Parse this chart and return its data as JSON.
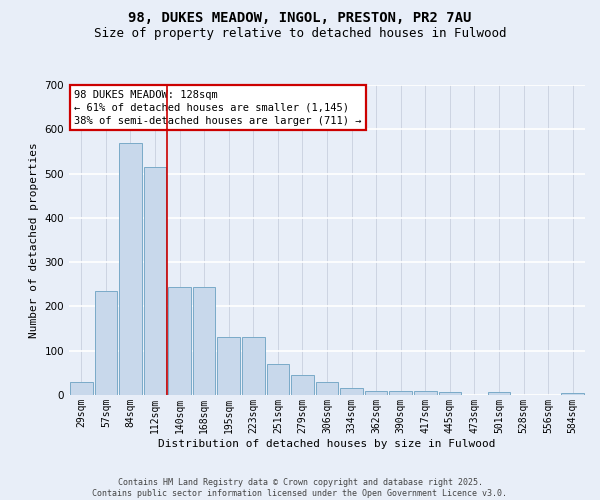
{
  "title1": "98, DUKES MEADOW, INGOL, PRESTON, PR2 7AU",
  "title2": "Size of property relative to detached houses in Fulwood",
  "xlabel": "Distribution of detached houses by size in Fulwood",
  "ylabel": "Number of detached properties",
  "categories": [
    "29sqm",
    "57sqm",
    "84sqm",
    "112sqm",
    "140sqm",
    "168sqm",
    "195sqm",
    "223sqm",
    "251sqm",
    "279sqm",
    "306sqm",
    "334sqm",
    "362sqm",
    "390sqm",
    "417sqm",
    "445sqm",
    "473sqm",
    "501sqm",
    "528sqm",
    "556sqm",
    "584sqm"
  ],
  "values": [
    30,
    235,
    570,
    515,
    245,
    245,
    130,
    130,
    70,
    45,
    30,
    15,
    10,
    10,
    10,
    6,
    0,
    6,
    0,
    0,
    5
  ],
  "bar_color": "#c8d8eb",
  "bar_edge_color": "#7aaac8",
  "vline_x": 3.5,
  "vline_color": "#cc0000",
  "annotation_line1": "98 DUKES MEADOW: 128sqm",
  "annotation_line2": "← 61% of detached houses are smaller (1,145)",
  "annotation_line3": "38% of semi-detached houses are larger (711) →",
  "annotation_box_color": "#ffffff",
  "annotation_box_edge": "#cc0000",
  "background_color": "#e8eef8",
  "grid_color": "#ffffff",
  "footer_text": "Contains HM Land Registry data © Crown copyright and database right 2025.\nContains public sector information licensed under the Open Government Licence v3.0.",
  "ylim": [
    0,
    700
  ],
  "yticks": [
    0,
    100,
    200,
    300,
    400,
    500,
    600,
    700
  ],
  "title1_fontsize": 10,
  "title2_fontsize": 9,
  "xlabel_fontsize": 8,
  "ylabel_fontsize": 8,
  "tick_fontsize": 7,
  "footer_fontsize": 6,
  "ann_fontsize": 7.5
}
